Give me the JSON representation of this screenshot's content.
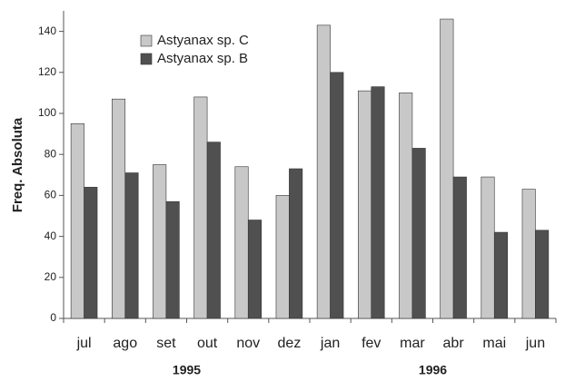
{
  "chart_data": {
    "type": "bar",
    "y_label": "Freq. Absoluta",
    "categories": [
      "jul",
      "ago",
      "set",
      "out",
      "nov",
      "dez",
      "jan",
      "fev",
      "mar",
      "abr",
      "mai",
      "jun"
    ],
    "series": [
      {
        "name": "Astyanax sp. C",
        "color": "#c8c8c8",
        "values": [
          95,
          107,
          75,
          108,
          74,
          60,
          143,
          111,
          110,
          146,
          69,
          63
        ]
      },
      {
        "name": "Astyanax sp. B",
        "color": "#505050",
        "values": [
          64,
          71,
          57,
          86,
          48,
          73,
          120,
          113,
          83,
          69,
          42,
          43
        ]
      }
    ],
    "x_groups": [
      {
        "label": "1995",
        "start": "jul",
        "end": "dez"
      },
      {
        "label": "1996",
        "start": "jan",
        "end": "jun"
      }
    ],
    "ylim": [
      0,
      150
    ],
    "yticks": [
      0,
      20,
      40,
      60,
      80,
      100,
      120,
      140
    ],
    "grid": false,
    "legend": "upper left"
  }
}
